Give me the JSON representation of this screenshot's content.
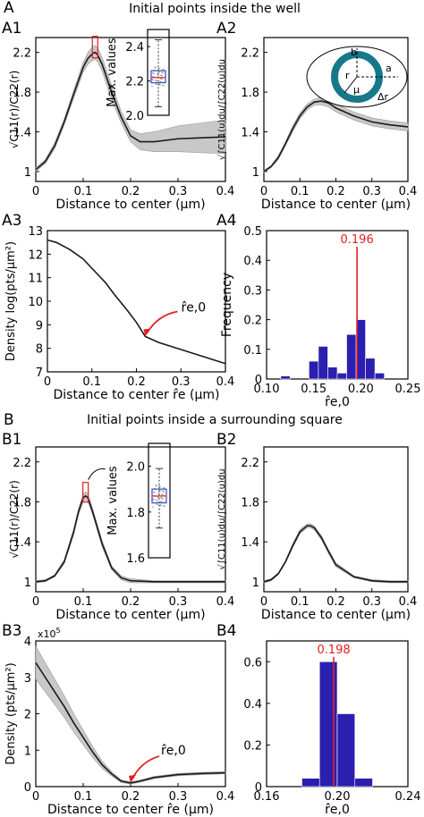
{
  "section_a": {
    "letter": "A",
    "title": "Initial points inside the well"
  },
  "section_b": {
    "letter": "B",
    "title": "Initial points inside a surrounding square"
  },
  "chart_data": [
    {
      "id": "A1",
      "type": "line",
      "panel_label": "A1",
      "xlabel": "Distance to center (μm)",
      "ylabel": "√C11(r)/C22(r)",
      "xlim": [
        0,
        0.4
      ],
      "ylim": [
        0.9,
        2.35
      ],
      "xticks": [
        "0",
        "0.1",
        "0.2",
        "0.3",
        "0.4"
      ],
      "yticks": [
        "1",
        "1.4",
        "1.8",
        "2.2"
      ],
      "x": [
        0,
        0.02,
        0.04,
        0.06,
        0.08,
        0.1,
        0.11,
        0.12,
        0.125,
        0.13,
        0.14,
        0.16,
        0.18,
        0.2,
        0.22,
        0.25,
        0.3,
        0.35,
        0.4
      ],
      "y": [
        1.02,
        1.1,
        1.26,
        1.5,
        1.78,
        2.05,
        2.14,
        2.19,
        2.2,
        2.18,
        2.08,
        1.8,
        1.55,
        1.36,
        1.3,
        1.3,
        1.33,
        1.34,
        1.35
      ],
      "band": [
        0.02,
        0.02,
        0.03,
        0.03,
        0.04,
        0.05,
        0.06,
        0.07,
        0.07,
        0.07,
        0.07,
        0.07,
        0.06,
        0.06,
        0.08,
        0.1,
        0.13,
        0.15,
        0.17
      ],
      "inset": {
        "ylabel": "Max. values",
        "yticks": [
          "2.0",
          "2.2",
          "2.4"
        ],
        "ylim": [
          2.0,
          2.5
        ],
        "median": 2.22,
        "q1": 2.19,
        "q3": 2.26,
        "whisker_low": 2.05,
        "whisker_high": 2.44
      }
    },
    {
      "id": "A2",
      "type": "line",
      "panel_label": "A2",
      "xlabel": "Distance to center (μm)",
      "ylabel": "√∫C11(u)du/∫C22(u)du",
      "xlim": [
        0,
        0.4
      ],
      "ylim": [
        0.9,
        2.35
      ],
      "xticks": [
        "0",
        "0.1",
        "0.2",
        "0.3",
        "0.4"
      ],
      "yticks": [
        "1",
        "1.4",
        "1.8",
        "2.2"
      ],
      "x": [
        0,
        0.02,
        0.04,
        0.06,
        0.08,
        0.1,
        0.12,
        0.14,
        0.16,
        0.18,
        0.2,
        0.25,
        0.3,
        0.35,
        0.4
      ],
      "y": [
        1.0,
        1.05,
        1.14,
        1.28,
        1.43,
        1.56,
        1.65,
        1.7,
        1.71,
        1.69,
        1.64,
        1.56,
        1.5,
        1.47,
        1.45
      ],
      "band": [
        0.01,
        0.01,
        0.02,
        0.02,
        0.03,
        0.03,
        0.03,
        0.03,
        0.04,
        0.04,
        0.04,
        0.04,
        0.04,
        0.04,
        0.04
      ],
      "diagram_labels": {
        "b": "b",
        "r": "r",
        "mu": "μ",
        "a": "a",
        "dr": "Δr"
      }
    },
    {
      "id": "A3",
      "type": "line",
      "panel_label": "A3",
      "xlabel": "Distance to center r̂e (μm)",
      "ylabel": "Density log(pts/μm²)",
      "xlim": [
        0,
        0.4
      ],
      "ylim": [
        7,
        13
      ],
      "xticks": [
        "0",
        "0.1",
        "0.2",
        "0.3",
        "0.4"
      ],
      "yticks": [
        "7",
        "8",
        "9",
        "10",
        "11",
        "12",
        "13"
      ],
      "x": [
        0,
        0.02,
        0.05,
        0.08,
        0.1,
        0.13,
        0.15,
        0.18,
        0.2,
        0.22,
        0.25,
        0.3,
        0.35,
        0.4
      ],
      "y": [
        12.6,
        12.5,
        12.2,
        11.8,
        11.4,
        10.8,
        10.3,
        9.6,
        9.1,
        8.5,
        8.25,
        7.95,
        7.65,
        7.35
      ],
      "annotation": {
        "label": "r̂e,0",
        "x": 0.22,
        "y": 8.5
      }
    },
    {
      "id": "A4",
      "type": "bar",
      "panel_label": "A4",
      "xlabel": "r̂e,0",
      "ylabel": "Frequency",
      "xlim": [
        0.1,
        0.25
      ],
      "ylim": [
        0,
        0.5
      ],
      "xticks": [
        "0.10",
        "0.15",
        "0.20",
        "0.25"
      ],
      "yticks": [
        "0",
        "0.1",
        "0.2",
        "0.3",
        "0.4",
        "0.5"
      ],
      "bin_edges": [
        0.115,
        0.125,
        0.135,
        0.145,
        0.155,
        0.165,
        0.175,
        0.185,
        0.195,
        0.205,
        0.215,
        0.225
      ],
      "values": [
        0.01,
        0,
        0,
        0.06,
        0.11,
        0.04,
        0.02,
        0.15,
        0.2,
        0.07,
        0.02
      ],
      "bar_color": "#2a1fae",
      "marker": {
        "value": 0.196,
        "label": "0.196",
        "color": "#e02020"
      }
    },
    {
      "id": "B1",
      "type": "line",
      "panel_label": "B1",
      "xlabel": "Distance to center (μm)",
      "ylabel": "√C11(r)/C22(r)",
      "xlim": [
        0,
        0.4
      ],
      "ylim": [
        0.9,
        2.35
      ],
      "xticks": [
        "0",
        "0.1",
        "0.2",
        "0.3",
        "0.4"
      ],
      "yticks": [
        "1",
        "1.4",
        "1.8",
        "2.2"
      ],
      "x": [
        0,
        0.02,
        0.04,
        0.06,
        0.08,
        0.09,
        0.1,
        0.105,
        0.11,
        0.12,
        0.14,
        0.16,
        0.18,
        0.2,
        0.25,
        0.3,
        0.35,
        0.4
      ],
      "y": [
        1.0,
        1.01,
        1.06,
        1.2,
        1.5,
        1.7,
        1.84,
        1.86,
        1.84,
        1.7,
        1.38,
        1.14,
        1.04,
        1.01,
        1.0,
        1.0,
        1.0,
        1.0
      ],
      "band": [
        0.01,
        0.01,
        0.01,
        0.02,
        0.03,
        0.03,
        0.04,
        0.04,
        0.04,
        0.03,
        0.03,
        0.02,
        0.02,
        0.02,
        0.01,
        0.01,
        0.01,
        0.01
      ],
      "inset": {
        "ylabel": "Max. values",
        "yticks": [
          "1.6",
          "1.8",
          "2.0"
        ],
        "ylim": [
          1.6,
          2.1
        ],
        "median": 1.87,
        "q1": 1.84,
        "q3": 1.9,
        "whisker_low": 1.73,
        "whisker_high": 1.99
      }
    },
    {
      "id": "B2",
      "type": "line",
      "panel_label": "B2",
      "xlabel": "Distance to center (μm)",
      "ylabel": "√∫C11(u)du/∫C22(u)du",
      "xlim": [
        0,
        0.4
      ],
      "ylim": [
        0.9,
        2.35
      ],
      "xticks": [
        "0",
        "0.1",
        "0.2",
        "0.3",
        "0.4"
      ],
      "yticks": [
        "1",
        "1.4",
        "1.8",
        "2.2"
      ],
      "x": [
        0,
        0.02,
        0.04,
        0.06,
        0.08,
        0.1,
        0.12,
        0.13,
        0.14,
        0.16,
        0.18,
        0.2,
        0.25,
        0.3,
        0.35,
        0.4
      ],
      "y": [
        1.0,
        1.02,
        1.08,
        1.2,
        1.36,
        1.5,
        1.56,
        1.56,
        1.54,
        1.44,
        1.3,
        1.17,
        1.05,
        1.01,
        1.0,
        1.0
      ],
      "band": [
        0.01,
        0.01,
        0.01,
        0.01,
        0.02,
        0.02,
        0.02,
        0.02,
        0.02,
        0.02,
        0.02,
        0.02,
        0.01,
        0.01,
        0.01,
        0.01
      ]
    },
    {
      "id": "B3",
      "type": "line",
      "panel_label": "B3",
      "xlabel": "Distance to center r̂e (μm)",
      "ylabel": "Density (pts/μm²)",
      "y_multiplier": "x10",
      "y_multiplier_exp": "5",
      "xlim": [
        0,
        0.4
      ],
      "ylim": [
        0,
        4
      ],
      "xticks": [
        "0",
        "0.1",
        "0.2",
        "0.3",
        "0.4"
      ],
      "yticks": [
        "0",
        "1",
        "2",
        "3",
        "4"
      ],
      "x": [
        0,
        0.02,
        0.04,
        0.06,
        0.08,
        0.1,
        0.12,
        0.14,
        0.16,
        0.18,
        0.2,
        0.22,
        0.25,
        0.3,
        0.35,
        0.4
      ],
      "y": [
        3.4,
        3.0,
        2.6,
        2.2,
        1.75,
        1.35,
        0.95,
        0.6,
        0.35,
        0.15,
        0.1,
        0.15,
        0.25,
        0.33,
        0.36,
        0.38
      ],
      "band": [
        0.45,
        0.4,
        0.35,
        0.3,
        0.25,
        0.2,
        0.15,
        0.1,
        0.06,
        0.04,
        0.03,
        0.03,
        0.03,
        0.03,
        0.03,
        0.03
      ],
      "annotation": {
        "label": "r̂e,0",
        "x": 0.2,
        "y": 0.1
      }
    },
    {
      "id": "B4",
      "type": "bar",
      "panel_label": "B4",
      "xlabel": "r̂e,0",
      "xlim": [
        0.16,
        0.24
      ],
      "ylim": [
        0,
        0.7
      ],
      "xticks": [
        "0.16",
        "0.20",
        "0.24"
      ],
      "yticks": [
        "0",
        "0.2",
        "0.4",
        "0.6"
      ],
      "bin_edges": [
        0.18,
        0.19,
        0.2,
        0.21,
        0.22
      ],
      "values": [
        0.04,
        0.6,
        0.35,
        0.04
      ],
      "bar_color": "#2a1fae",
      "marker": {
        "value": 0.198,
        "label": "0.198",
        "color": "#e02020"
      }
    }
  ],
  "colors": {
    "line": "#1a1a1a",
    "band": "#c8c8c8",
    "bars": "#2a1fae",
    "marker": "#e02020",
    "ring": "#17788a",
    "box_blue": "#3b5bdb",
    "box_median": "#e03131",
    "arrow": "#e02020"
  }
}
